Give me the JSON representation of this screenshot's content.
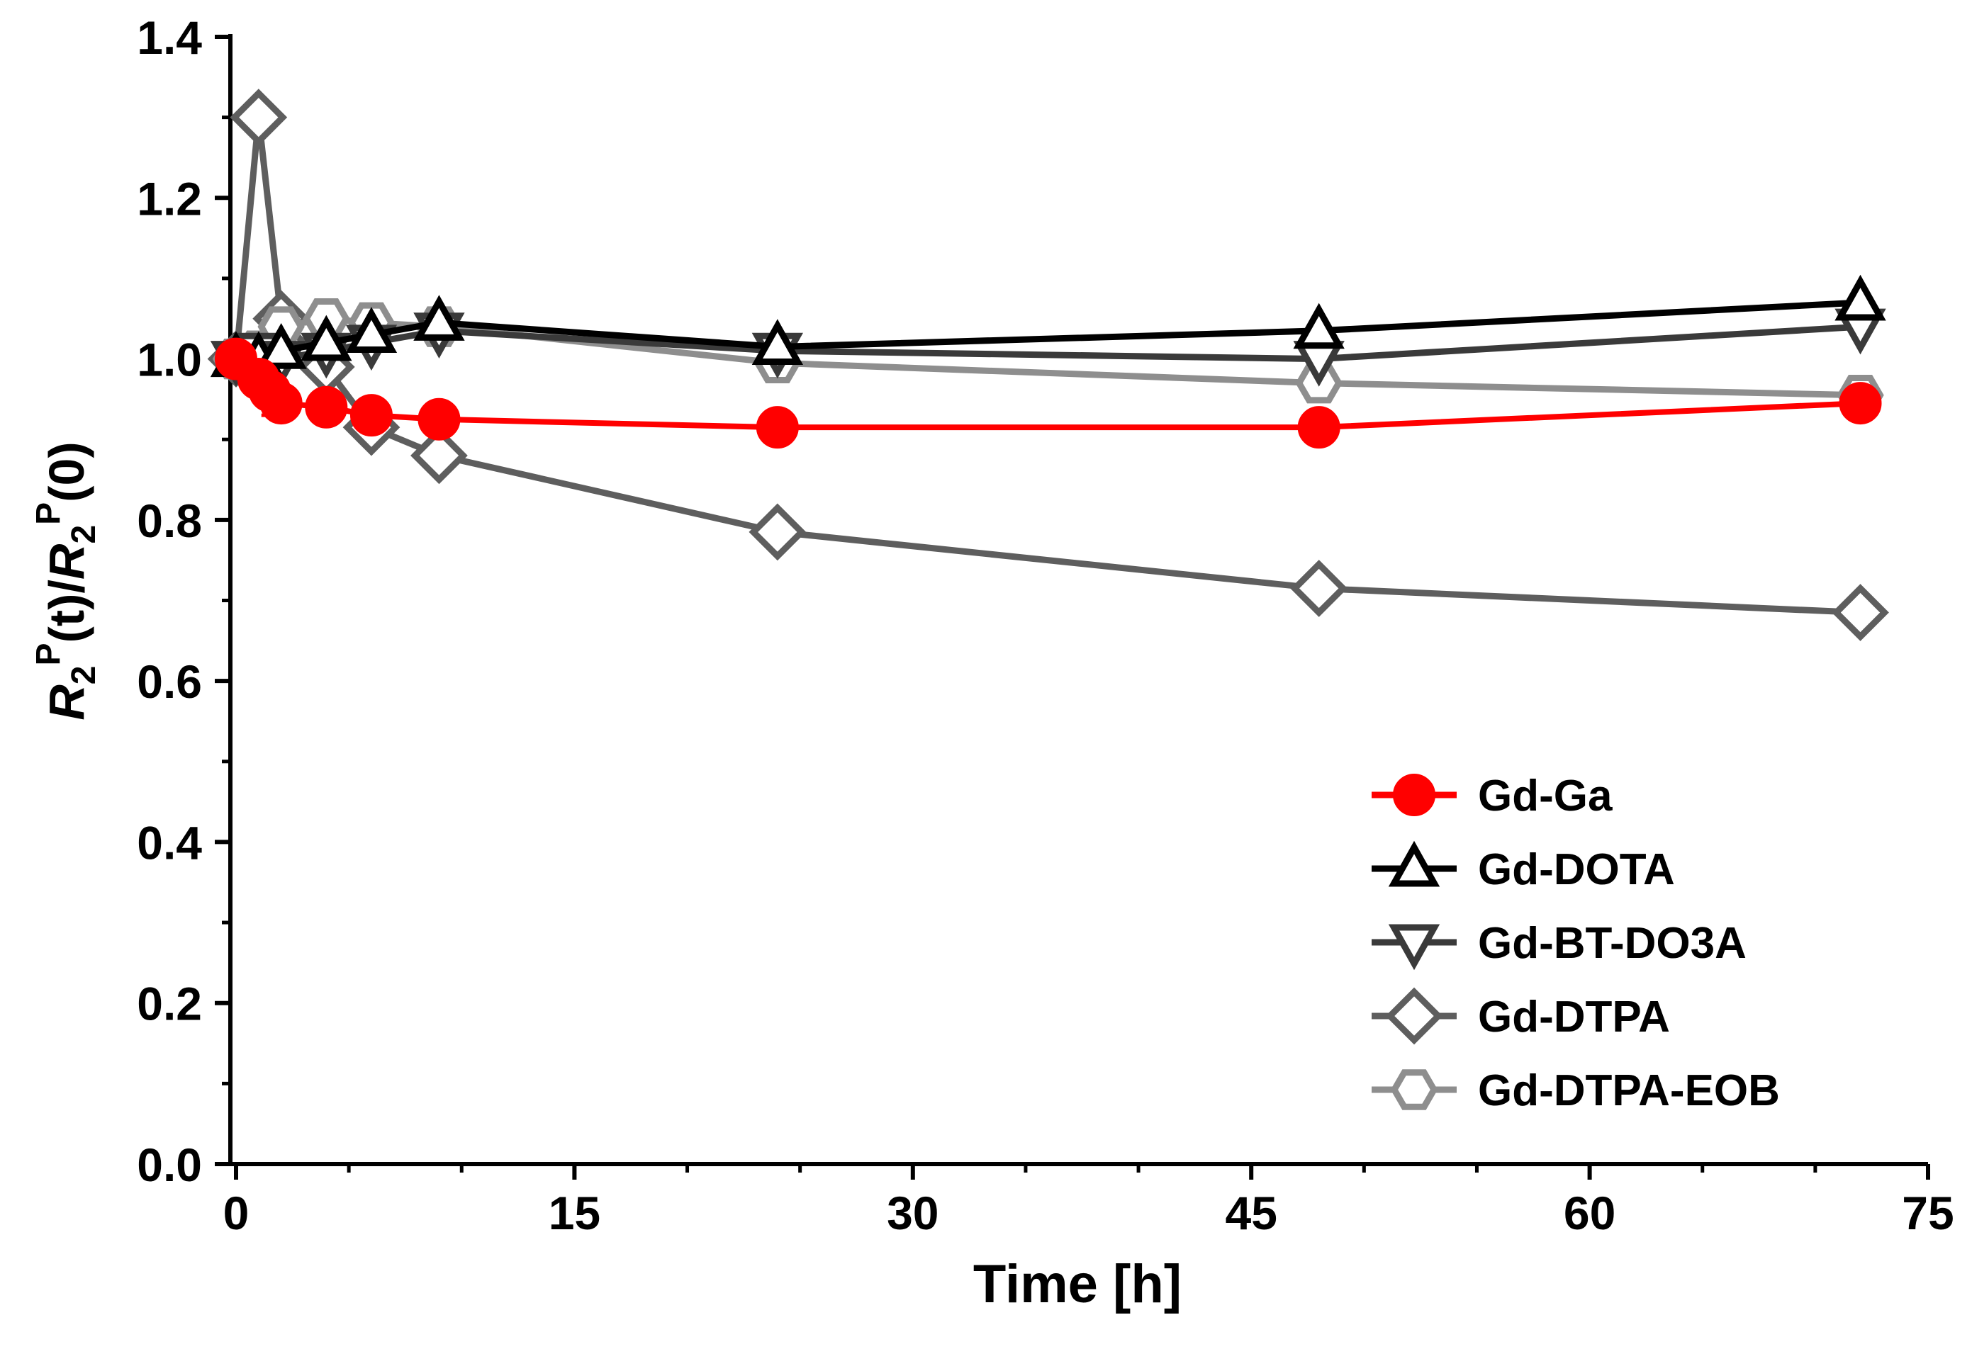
{
  "chart_data": {
    "type": "line",
    "title": "",
    "xlabel": "Time [h]",
    "ylabel": {
      "r1": "R",
      "sub1": "2",
      "sup1": "P",
      "t": "(t)/",
      "r2": "R",
      "sub2": "2",
      "sup2": "P",
      "zero": "(0)"
    },
    "xlim": [
      0,
      75
    ],
    "ylim": [
      0,
      1.4
    ],
    "xticks": [
      0,
      15,
      30,
      45,
      60,
      75
    ],
    "xtick_labels": [
      "0",
      "15",
      "30",
      "45",
      "60",
      "75"
    ],
    "yticks": [
      0,
      0.2,
      0.4,
      0.6,
      0.8,
      1.0,
      1.2,
      1.4
    ],
    "ytick_labels": [
      "0.0",
      "0.2",
      "0.4",
      "0.6",
      "0.8",
      "1.0",
      "1.2",
      "1.4"
    ],
    "legend_position": "bottom-right",
    "series": [
      {
        "name": "Gd-DTPA",
        "marker": "diamond",
        "color": "#5e5e5e",
        "x": [
          0,
          1,
          2,
          4,
          6,
          9,
          24,
          48,
          72
        ],
        "y": [
          1.0,
          1.3,
          1.05,
          0.99,
          0.915,
          0.88,
          0.785,
          0.715,
          0.685
        ]
      },
      {
        "name": "Gd-DTPA-EOB",
        "marker": "hexagon",
        "color": "#8e8e8e",
        "x": [
          0,
          1,
          2,
          4,
          6,
          9,
          24,
          48,
          72
        ],
        "y": [
          1.0,
          1.01,
          1.04,
          1.05,
          1.045,
          1.04,
          0.995,
          0.97,
          0.955
        ]
      },
      {
        "name": "Gd-BT-DO3A",
        "marker": "triangle-down",
        "color": "#3a3a3a",
        "x": [
          0,
          1,
          2,
          4,
          6,
          9,
          24,
          48,
          72
        ],
        "y": [
          1.0,
          1.01,
          1.0,
          1.01,
          1.02,
          1.035,
          1.01,
          1.0,
          1.04
        ]
      },
      {
        "name": "Gd-DOTA",
        "marker": "triangle-up",
        "color": "#000000",
        "x": [
          0,
          1,
          2,
          4,
          6,
          9,
          24,
          48,
          72
        ],
        "y": [
          1.0,
          1.0,
          1.01,
          1.02,
          1.03,
          1.045,
          1.015,
          1.035,
          1.07
        ]
      },
      {
        "name": "Gd-Ga",
        "marker": "circle",
        "color": "#ff0000",
        "x": [
          0,
          1,
          1.5,
          2,
          4,
          6,
          9,
          24,
          48,
          72
        ],
        "y": [
          1.0,
          0.975,
          0.96,
          0.945,
          0.94,
          0.93,
          0.925,
          0.915,
          0.915,
          0.945
        ]
      }
    ],
    "legend_order": [
      "Gd-Ga",
      "Gd-DOTA",
      "Gd-BT-DO3A",
      "Gd-DTPA",
      "Gd-DTPA-EOB"
    ]
  }
}
